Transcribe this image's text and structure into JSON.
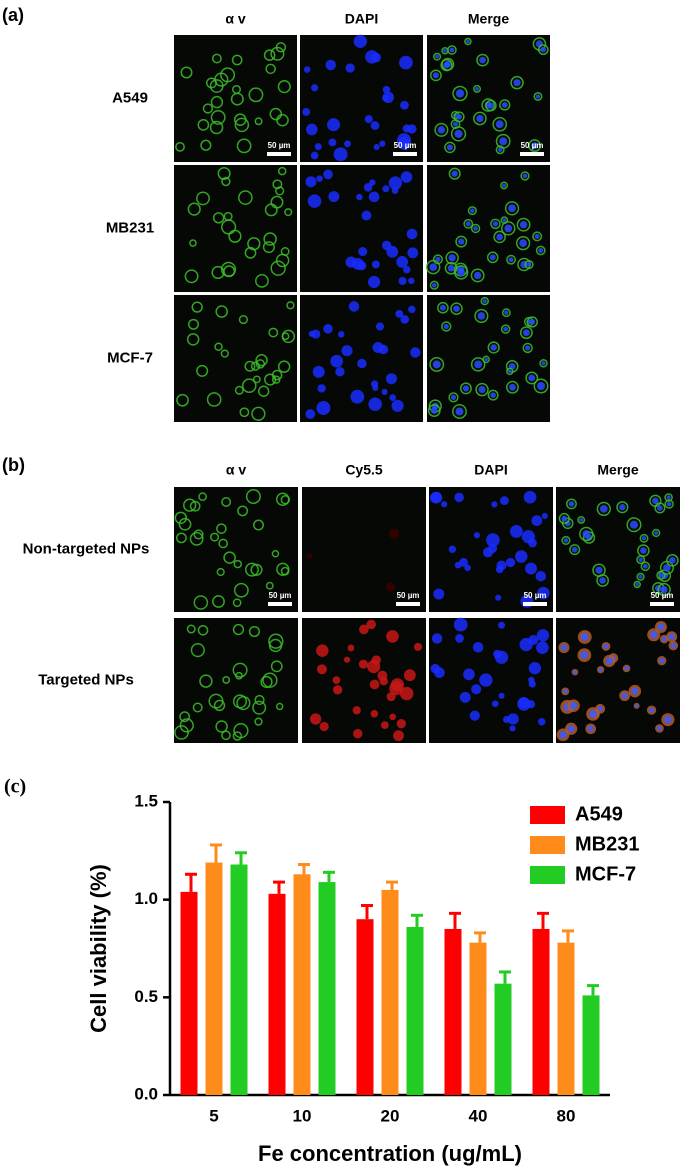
{
  "panel_a": {
    "label": "(a)",
    "columns": [
      "α v",
      "DAPI",
      "Merge"
    ],
    "rows": [
      "A549",
      "MB231",
      "MCF-7"
    ],
    "scale_bar": "50 µm"
  },
  "panel_b": {
    "label": "(b)",
    "columns": [
      "α v",
      "Cy5.5",
      "DAPI",
      "Merge"
    ],
    "rows": [
      "Non-targeted NPs",
      "Targeted NPs"
    ],
    "scale_bar": "50 µm"
  },
  "chart_data": {
    "type": "bar",
    "panel_label": "(c)",
    "x_label": "Fe concentration (ug/mL)",
    "y_label": "Cell viability (%)",
    "categories": [
      "5",
      "10",
      "20",
      "40",
      "80"
    ],
    "series": [
      {
        "name": "A549",
        "color": "#ff0000",
        "values": [
          1.04,
          1.03,
          0.9,
          0.85,
          0.85
        ],
        "errors": [
          0.09,
          0.06,
          0.07,
          0.08,
          0.08
        ]
      },
      {
        "name": "MB231",
        "color": "#ff8c1a",
        "values": [
          1.19,
          1.13,
          1.05,
          0.78,
          0.78
        ],
        "errors": [
          0.09,
          0.05,
          0.04,
          0.05,
          0.06
        ]
      },
      {
        "name": "MCF-7",
        "color": "#22cc22",
        "values": [
          1.18,
          1.09,
          0.86,
          0.57,
          0.51
        ],
        "errors": [
          0.06,
          0.05,
          0.06,
          0.06,
          0.05
        ]
      }
    ],
    "ylim": [
      0,
      1.5
    ],
    "yticks": [
      {
        "value": 0,
        "label": "0.0"
      },
      {
        "value": 0.5,
        "label": "0.5"
      },
      {
        "value": 1,
        "label": "1.0"
      },
      {
        "value": 1.5,
        "label": "1.5"
      }
    ],
    "legend": "upper right"
  }
}
